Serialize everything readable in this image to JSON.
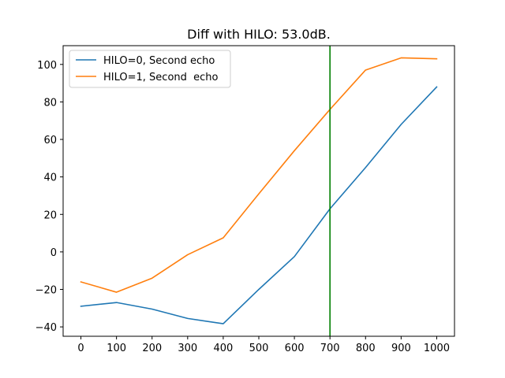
{
  "chart_data": {
    "type": "line",
    "title": "Diff with HILO: 53.0dB.",
    "xlabel": "",
    "ylabel": "",
    "x": [
      0,
      100,
      200,
      300,
      400,
      500,
      600,
      700,
      800,
      900,
      1000
    ],
    "xlim": [
      -50,
      1050
    ],
    "ylim": [
      -45,
      110
    ],
    "xticks": [
      0,
      100,
      200,
      300,
      400,
      500,
      600,
      700,
      800,
      900,
      1000
    ],
    "yticks": [
      -40,
      -20,
      0,
      20,
      40,
      60,
      80,
      100
    ],
    "ytick_labels": [
      "−40",
      "−20",
      "0",
      "20",
      "40",
      "60",
      "80",
      "100"
    ],
    "grid": false,
    "legend_position": "top-left",
    "series": [
      {
        "name": "HILO=0, Second echo",
        "color": "#1f77b4",
        "values": [
          -29,
          -27,
          -30.5,
          -35.5,
          -38.3,
          -20,
          -2.5,
          23,
          45,
          68,
          88
        ]
      },
      {
        "name": "HILO=1, Second  echo",
        "color": "#ff7f0e",
        "values": [
          -16,
          -21.5,
          -14,
          -1.5,
          7.5,
          31,
          54,
          76,
          97,
          103.5,
          103
        ]
      }
    ],
    "vertical_line": {
      "x": 700,
      "color": "#008000"
    }
  }
}
